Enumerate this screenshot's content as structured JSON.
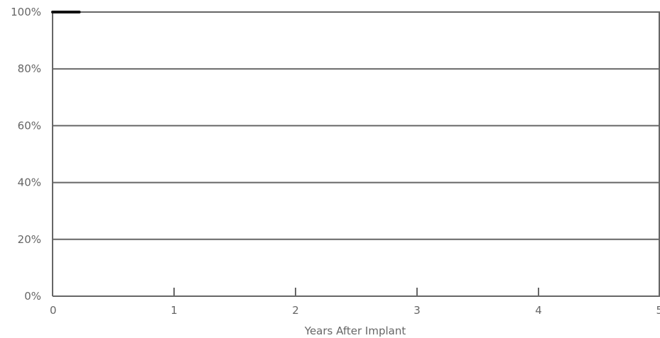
{
  "chart_data": {
    "type": "line",
    "title": "",
    "xlabel": "Years After Implant",
    "ylabel": "",
    "xlim": [
      0,
      5
    ],
    "ylim": [
      0,
      100
    ],
    "x_ticks": [
      "0",
      "1",
      "2",
      "3",
      "4",
      "5"
    ],
    "y_ticks": [
      "0%",
      "20%",
      "40%",
      "60%",
      "80%",
      "100%"
    ],
    "grid": "horizontal",
    "legend": "none",
    "series": [
      {
        "x": [
          0,
          0.05,
          0.1,
          0.15,
          0.2,
          0.22
        ],
        "y": [
          100,
          100,
          100,
          100,
          100,
          100
        ],
        "color": "#111111"
      }
    ],
    "colors": {
      "axis": "#666666",
      "grid": "#666666",
      "text": "#666666",
      "series": "#111111"
    }
  }
}
